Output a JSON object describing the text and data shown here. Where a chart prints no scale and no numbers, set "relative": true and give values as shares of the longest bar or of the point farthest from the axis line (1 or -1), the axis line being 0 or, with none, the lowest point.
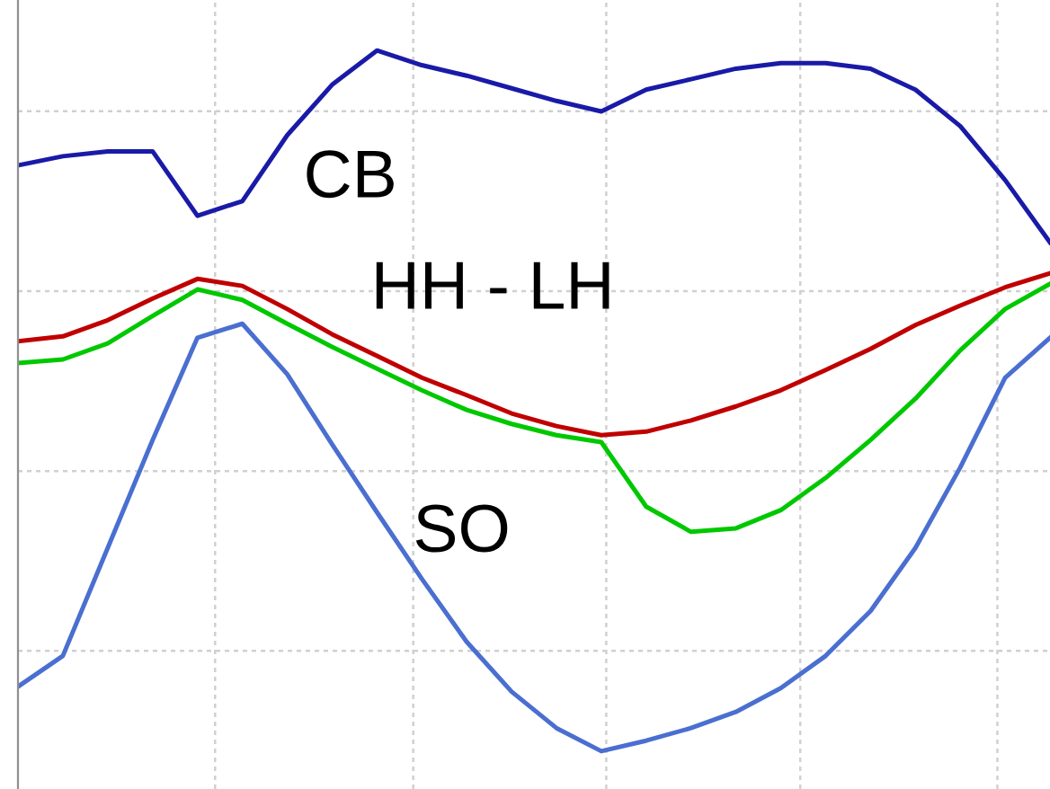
{
  "chart_data": {
    "type": "line",
    "relative": true,
    "grid": true,
    "marker": "none",
    "line_style": "solid",
    "categories": [
      null,
      null,
      null,
      null,
      null,
      null,
      null,
      null,
      null,
      null,
      null,
      null,
      null,
      null,
      null,
      null,
      null,
      null,
      null,
      null,
      null,
      null,
      null,
      null
    ],
    "series": [
      {
        "color": "#1a1aa8",
        "values": [
          0.836,
          0.849,
          0.856,
          0.856,
          0.764,
          0.785,
          0.879,
          0.951,
          1.0,
          0.979,
          0.964,
          0.946,
          0.928,
          0.913,
          0.944,
          0.959,
          0.974,
          0.982,
          0.982,
          0.974,
          0.944,
          0.892,
          0.815,
          0.726
        ]
      },
      {
        "color": "#c00000",
        "values": [
          0.585,
          0.592,
          0.615,
          0.646,
          0.674,
          0.664,
          0.631,
          0.595,
          0.564,
          0.533,
          0.508,
          0.482,
          0.464,
          0.451,
          0.456,
          0.472,
          0.492,
          0.515,
          0.544,
          0.574,
          0.608,
          0.636,
          0.662,
          0.682
        ]
      },
      {
        "color": "#00c800",
        "values": [
          0.554,
          0.559,
          0.582,
          0.621,
          0.659,
          0.644,
          0.61,
          0.577,
          0.546,
          0.515,
          0.487,
          0.467,
          0.451,
          0.441,
          0.349,
          0.313,
          0.318,
          0.344,
          0.39,
          0.444,
          0.503,
          0.572,
          0.631,
          0.667
        ]
      },
      {
        "color": "#4a6fd0",
        "values": [
          0.092,
          0.136,
          0.29,
          0.444,
          0.59,
          0.61,
          0.538,
          0.438,
          0.341,
          0.246,
          0.156,
          0.085,
          0.033,
          0.0,
          0.015,
          0.033,
          0.056,
          0.09,
          0.136,
          0.2,
          0.29,
          0.405,
          0.533,
          0.59
        ]
      }
    ],
    "annotations": [
      "CB",
      "HH - LH",
      "SO"
    ]
  }
}
